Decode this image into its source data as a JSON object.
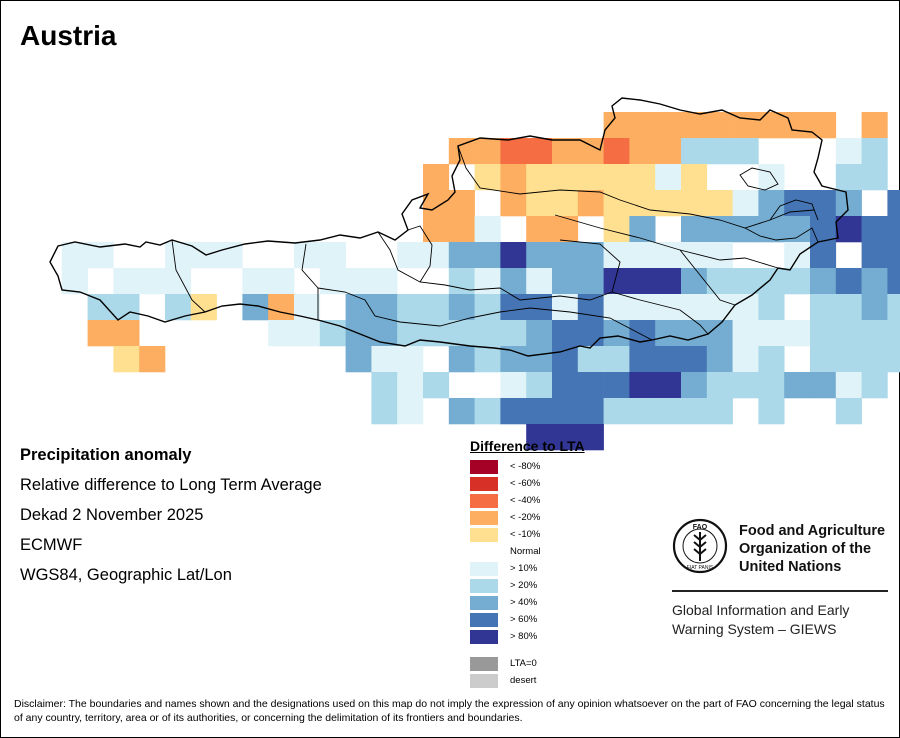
{
  "title": "Austria",
  "info": {
    "line1": "Precipitation anomaly",
    "line2": "Relative difference to Long Term Average",
    "line3": "Dekad 2 November 2025",
    "line4": "ECMWF",
    "line5": "WGS84, Geographic Lat/Lon"
  },
  "legend": {
    "title": "Difference to LTA",
    "items": [
      {
        "label": "< -80%",
        "color": "#a50026"
      },
      {
        "label": "< -60%",
        "color": "#d73027"
      },
      {
        "label": "< -40%",
        "color": "#f46d43"
      },
      {
        "label": "< -20%",
        "color": "#fdae61"
      },
      {
        "label": "< -10%",
        "color": "#fee090"
      },
      {
        "label": "Normal",
        "color": "#ffffff"
      },
      {
        "label": "> 10%",
        "color": "#e0f3f8"
      },
      {
        "label": "> 20%",
        "color": "#abd9e9"
      },
      {
        "label": "> 40%",
        "color": "#74add1"
      },
      {
        "label": "> 60%",
        "color": "#4575b4"
      },
      {
        "label": "> 80%",
        "color": "#313695"
      }
    ],
    "extra": [
      {
        "label": "LTA=0",
        "color": "#999999"
      },
      {
        "label": "desert",
        "color": "#cccccc"
      }
    ]
  },
  "fao": {
    "name_line1": "Food and Agriculture",
    "name_line2": "Organization of the",
    "name_line3": "United Nations",
    "giews_line1": "Global Information and Early",
    "giews_line2": "Warning System – GIEWS",
    "logo_letters": "FAO",
    "logo_motto": "FIAT PANIS"
  },
  "disclaimer": "Disclaimer: The boundaries and names shown and the designations used on this map do not imply the expression of any opinion whatsoever on the part of FAO concerning the legal status of any country, territory, area or of its authorities, or concerning the delimitation of its frontiers and boundaries."
}
